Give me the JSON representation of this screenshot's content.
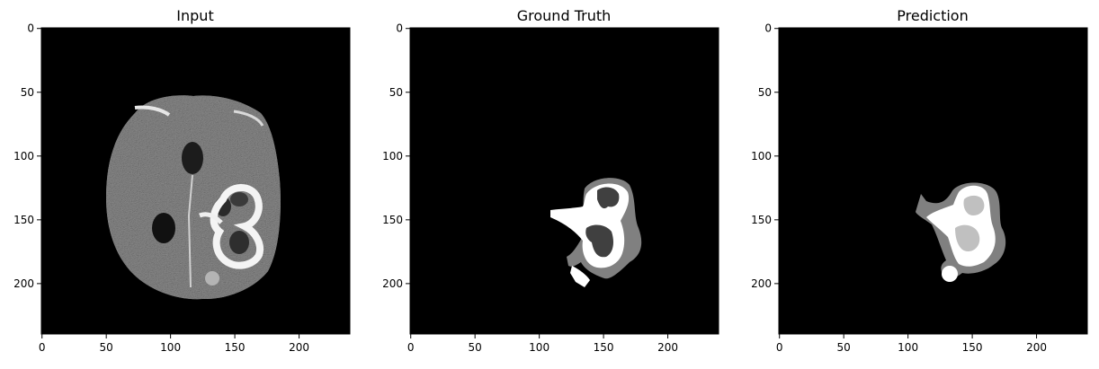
{
  "figure": {
    "background": "#ffffff",
    "panels": [
      {
        "title": "Input",
        "image": "mri-slice",
        "x_ticks": [
          "0",
          "50",
          "100",
          "150",
          "200"
        ],
        "y_ticks": [
          "0",
          "50",
          "100",
          "150",
          "200"
        ]
      },
      {
        "title": "Ground Truth",
        "image": "ground-truth-mask",
        "x_ticks": [
          "0",
          "50",
          "100",
          "150",
          "200"
        ],
        "y_ticks": [
          "0",
          "50",
          "100",
          "150",
          "200"
        ]
      },
      {
        "title": "Prediction",
        "image": "predicted-mask",
        "x_ticks": [
          "0",
          "50",
          "100",
          "150",
          "200"
        ],
        "y_ticks": [
          "0",
          "50",
          "100",
          "150",
          "200"
        ]
      }
    ],
    "colors": {
      "image_bg": "#000000",
      "tissue": "#8a8a8a",
      "edema": "#808080",
      "enhancing": "#ffffff",
      "necrotic": "#404040",
      "light_gray": "#c0c0c0",
      "axis": "#000000"
    }
  }
}
